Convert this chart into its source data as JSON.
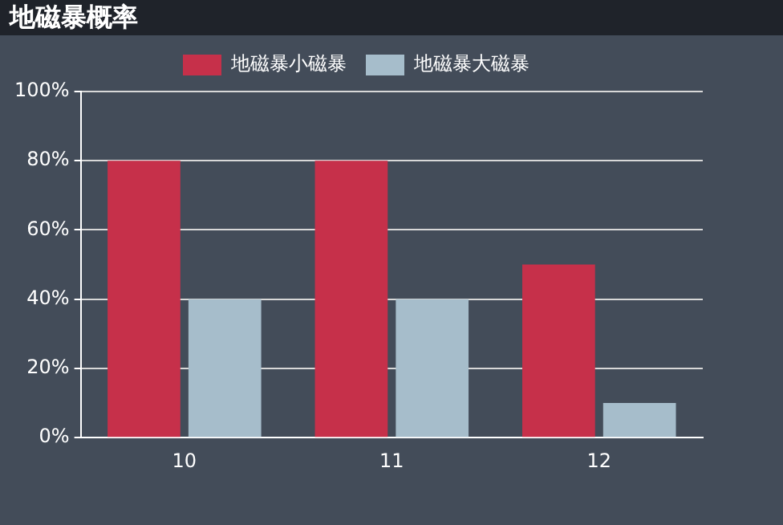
{
  "chart_data": {
    "type": "bar",
    "title": "地磁暴概率",
    "categories": [
      "10",
      "11",
      "12"
    ],
    "series": [
      {
        "name": "地磁暴小磁暴",
        "color": "#c6304a",
        "values": [
          80,
          80,
          50
        ]
      },
      {
        "name": "地磁暴大磁暴",
        "color": "#a6bdcb",
        "values": [
          40,
          40,
          10
        ]
      }
    ],
    "ylim": [
      0,
      100
    ],
    "yticks": [
      {
        "value": 0,
        "label": "0%"
      },
      {
        "value": 20,
        "label": "20%"
      },
      {
        "value": 40,
        "label": "40%"
      },
      {
        "value": 60,
        "label": "60%"
      },
      {
        "value": 80,
        "label": "80%"
      },
      {
        "value": 100,
        "label": "100%"
      }
    ],
    "grid": "y",
    "legend": "top"
  }
}
